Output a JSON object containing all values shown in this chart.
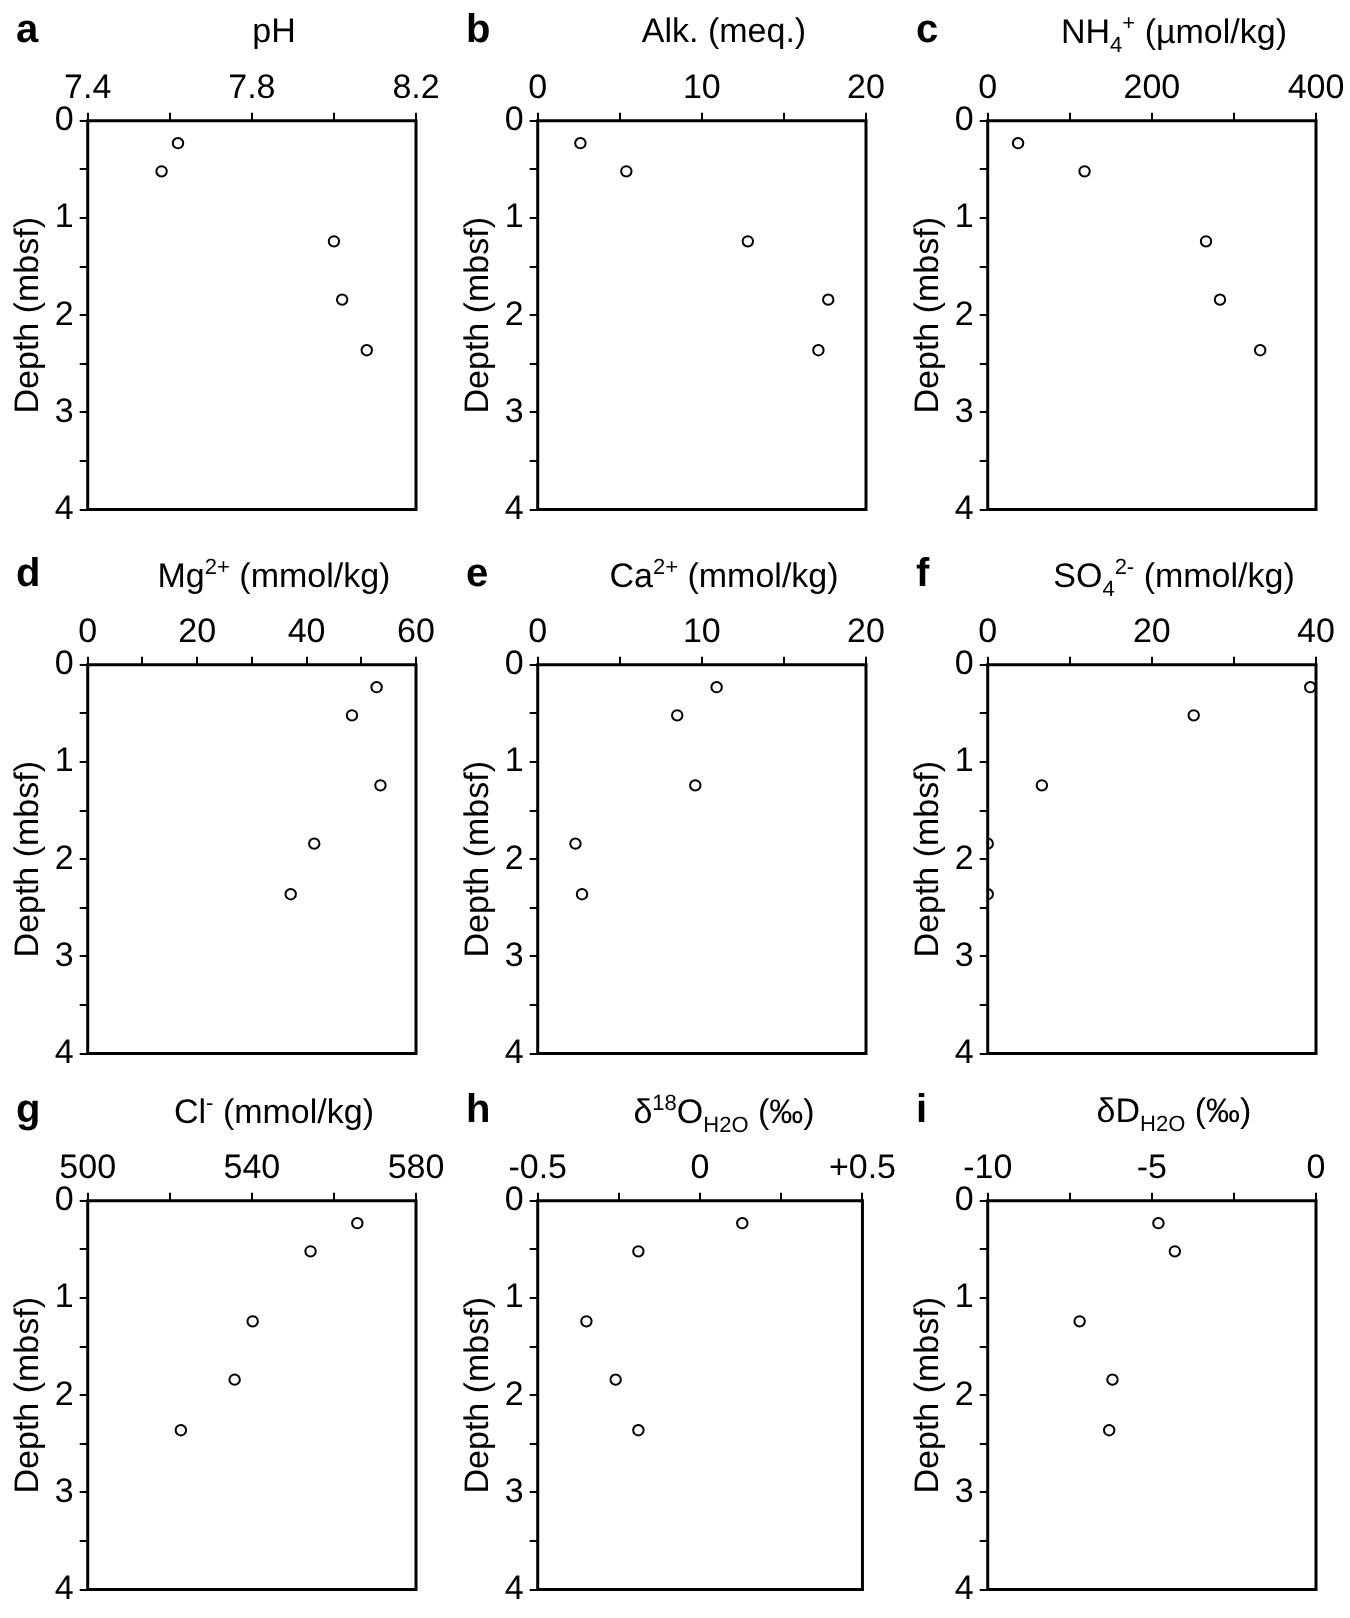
{
  "chart_data": [
    {
      "type": "scatter",
      "title": "a",
      "xlabel": "pH",
      "ylabel": "Depth (mbsf)",
      "x": [
        7.62,
        7.58,
        8.0,
        8.02,
        8.08
      ],
      "series": [
        {
          "color": "#000000",
          "values": [
            0.23,
            0.52,
            1.24,
            1.84,
            2.36
          ]
        }
      ],
      "xlim": [
        7.4,
        8.2
      ],
      "xticks": [
        7.4,
        {
          "value": 7.6,
          "label": null
        },
        7.8,
        {
          "value": 8.0,
          "label": null
        },
        8.2
      ],
      "ylim": [
        4,
        0
      ],
      "yticks": [
        0,
        {
          "value": 0.5,
          "label": null
        },
        1,
        {
          "value": 1.5,
          "label": null
        },
        2,
        {
          "value": 2.5,
          "label": null
        },
        3,
        {
          "value": 3.5,
          "label": null
        },
        4
      ],
      "marker": "circle"
    },
    {
      "type": "scatter",
      "title": "b",
      "xlabel": "Alk. (meq.)",
      "ylabel": "Depth (mbsf)",
      "x": [
        2.6,
        5.4,
        12.8,
        17.7,
        17.1
      ],
      "series": [
        {
          "color": "#000000",
          "values": [
            0.23,
            0.52,
            1.24,
            1.84,
            2.36
          ]
        }
      ],
      "xlim": [
        0,
        20
      ],
      "xticks": [
        0,
        {
          "value": 5,
          "label": null
        },
        10,
        {
          "value": 15,
          "label": null
        },
        20
      ],
      "ylim": [
        4,
        0
      ],
      "yticks": [
        0,
        {
          "value": 0.5,
          "label": null
        },
        1,
        {
          "value": 1.5,
          "label": null
        },
        2,
        {
          "value": 2.5,
          "label": null
        },
        3,
        {
          "value": 3.5,
          "label": null
        },
        4
      ],
      "marker": "circle"
    },
    {
      "type": "scatter",
      "title": "c",
      "xlabel": "NH$_{4}$$^{+}$ (µmol/kg)",
      "ylabel": "Depth (mbsf)",
      "x": [
        37,
        118,
        266,
        283,
        332
      ],
      "series": [
        {
          "color": "#000000",
          "values": [
            0.23,
            0.52,
            1.24,
            1.84,
            2.36
          ]
        }
      ],
      "xlim": [
        0,
        400
      ],
      "xticks": [
        0,
        {
          "value": 100,
          "label": null
        },
        200,
        {
          "value": 300,
          "label": null
        },
        400
      ],
      "ylim": [
        4,
        0
      ],
      "yticks": [
        0,
        {
          "value": 0.5,
          "label": null
        },
        1,
        {
          "value": 1.5,
          "label": null
        },
        2,
        {
          "value": 2.5,
          "label": null
        },
        3,
        {
          "value": 3.5,
          "label": null
        },
        4
      ],
      "marker": "circle"
    },
    {
      "type": "scatter",
      "title": "d",
      "xlabel": "Mg$^{2+}$ (mmol/kg)",
      "ylabel": "Depth (mbsf)",
      "x": [
        52.8,
        48.3,
        53.5,
        41.4,
        37.1
      ],
      "series": [
        {
          "color": "#000000",
          "values": [
            0.23,
            0.52,
            1.24,
            1.84,
            2.36
          ]
        }
      ],
      "xlim": [
        0,
        60
      ],
      "xticks": [
        0,
        {
          "value": 10,
          "label": null
        },
        20,
        {
          "value": 30,
          "label": null
        },
        40,
        {
          "value": 50,
          "label": null
        },
        60
      ],
      "ylim": [
        4,
        0
      ],
      "yticks": [
        0,
        {
          "value": 0.5,
          "label": null
        },
        1,
        {
          "value": 1.5,
          "label": null
        },
        2,
        {
          "value": 2.5,
          "label": null
        },
        3,
        {
          "value": 3.5,
          "label": null
        },
        4
      ],
      "marker": "circle"
    },
    {
      "type": "scatter",
      "title": "e",
      "xlabel": "Ca$^{2+}$ (mmol/kg)",
      "ylabel": "Depth (mbsf)",
      "x": [
        10.9,
        8.5,
        9.6,
        2.3,
        2.7
      ],
      "series": [
        {
          "color": "#000000",
          "values": [
            0.23,
            0.52,
            1.24,
            1.84,
            2.36
          ]
        }
      ],
      "xlim": [
        0,
        20
      ],
      "xticks": [
        0,
        {
          "value": 5,
          "label": null
        },
        10,
        {
          "value": 15,
          "label": null
        },
        20
      ],
      "ylim": [
        4,
        0
      ],
      "yticks": [
        0,
        {
          "value": 0.5,
          "label": null
        },
        1,
        {
          "value": 1.5,
          "label": null
        },
        2,
        {
          "value": 2.5,
          "label": null
        },
        3,
        {
          "value": 3.5,
          "label": null
        },
        4
      ],
      "marker": "circle"
    },
    {
      "type": "scatter",
      "title": "f",
      "xlabel": "SO$_{4}$$^{2-}$ (mmol/kg)",
      "ylabel": "Depth (mbsf)",
      "x": [
        39.3,
        25.1,
        6.6,
        0,
        0
      ],
      "series": [
        {
          "color": "#000000",
          "values": [
            0.23,
            0.52,
            1.24,
            1.84,
            2.36
          ]
        }
      ],
      "xlim": [
        0,
        40
      ],
      "xticks": [
        0,
        {
          "value": 10,
          "label": null
        },
        20,
        {
          "value": 30,
          "label": null
        },
        40
      ],
      "ylim": [
        4,
        0
      ],
      "yticks": [
        0,
        {
          "value": 0.5,
          "label": null
        },
        1,
        {
          "value": 1.5,
          "label": null
        },
        2,
        {
          "value": 2.5,
          "label": null
        },
        3,
        {
          "value": 3.5,
          "label": null
        },
        4
      ],
      "marker": "circle"
    },
    {
      "type": "scatter",
      "title": "g",
      "xlabel": "Cl$^{-}$ (mmol/kg)",
      "ylabel": "Depth (mbsf)",
      "x": [
        565.7,
        554.3,
        540.2,
        535.8,
        522.7
      ],
      "series": [
        {
          "color": "#000000",
          "values": [
            0.23,
            0.52,
            1.24,
            1.84,
            2.36
          ]
        }
      ],
      "xlim": [
        500,
        580
      ],
      "xticks": [
        500,
        {
          "value": 520,
          "label": null
        },
        540,
        {
          "value": 560,
          "label": null
        },
        580
      ],
      "ylim": [
        4,
        0
      ],
      "yticks": [
        0,
        {
          "value": 0.5,
          "label": null
        },
        1,
        {
          "value": 1.5,
          "label": null
        },
        2,
        {
          "value": 2.5,
          "label": null
        },
        3,
        {
          "value": 3.5,
          "label": null
        },
        4
      ],
      "marker": "circle"
    },
    {
      "type": "scatter",
      "title": "h",
      "xlabel": "δ$^{18}$O$_{H2O}$ (‰)",
      "ylabel": "Depth (mbsf)",
      "x": [
        0.13,
        -0.19,
        -0.35,
        -0.26,
        -0.19
      ],
      "series": [
        {
          "color": "#000000",
          "values": [
            0.23,
            0.52,
            1.24,
            1.84,
            2.36
          ]
        }
      ],
      "xlim": [
        -0.5,
        0.5
      ],
      "xticks": [
        -0.5,
        {
          "value": -0.25,
          "label": null
        },
        0,
        {
          "value": 0.25,
          "label": null
        },
        {
          "value": 0.5,
          "label": "+0.5"
        }
      ],
      "ylim": [
        4,
        0
      ],
      "yticks": [
        0,
        {
          "value": 0.5,
          "label": null
        },
        1,
        {
          "value": 1.5,
          "label": null
        },
        2,
        {
          "value": 2.5,
          "label": null
        },
        3,
        {
          "value": 3.5,
          "label": null
        },
        4
      ],
      "marker": "circle"
    },
    {
      "type": "scatter",
      "title": "i",
      "xlabel": "δD$_{H2O}$ (‰)",
      "ylabel": "Depth (mbsf)",
      "x": [
        -4.8,
        -4.3,
        -7.2,
        -6.2,
        -6.3
      ],
      "series": [
        {
          "color": "#000000",
          "values": [
            0.23,
            0.52,
            1.24,
            1.84,
            2.36
          ]
        }
      ],
      "xlim": [
        -10,
        0
      ],
      "xticks": [
        -10,
        {
          "value": -7.5,
          "label": null
        },
        -5,
        {
          "value": -2.5,
          "label": null
        },
        0
      ],
      "ylim": [
        4,
        0
      ],
      "yticks": [
        0,
        {
          "value": 0.5,
          "label": null
        },
        1,
        {
          "value": 1.5,
          "label": null
        },
        2,
        {
          "value": 2.5,
          "label": null
        },
        3,
        {
          "value": 3.5,
          "label": null
        },
        4
      ],
      "marker": "circle"
    }
  ]
}
